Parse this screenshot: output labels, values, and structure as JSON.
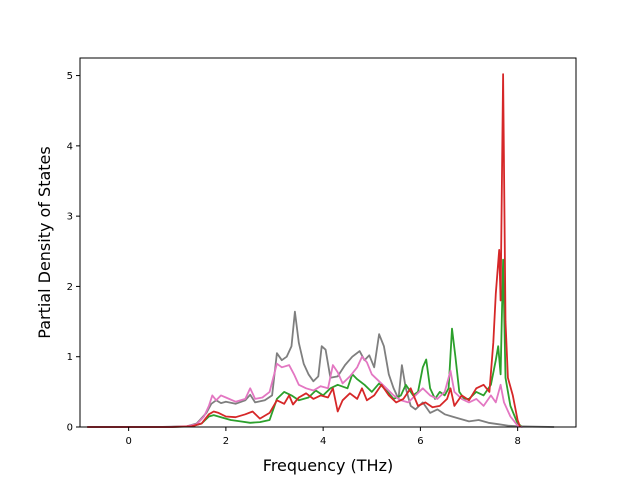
{
  "chart_data": {
    "type": "line",
    "title": "",
    "xlabel": "Frequency (THz)",
    "ylabel": "Partial Density of States",
    "xlim": [
      -1.0,
      9.2
    ],
    "ylim": [
      0,
      5.25
    ],
    "xticks": [
      0,
      2,
      4,
      6,
      8
    ],
    "yticks": [
      0,
      1,
      2,
      3,
      4,
      5
    ],
    "grid": false,
    "legend": "none",
    "series": [
      {
        "color": "#7f7f7f",
        "points": [
          [
            -0.85,
            0
          ],
          [
            0.6,
            0
          ],
          [
            1.2,
            0.01
          ],
          [
            1.4,
            0.05
          ],
          [
            1.6,
            0.2
          ],
          [
            1.7,
            0.33
          ],
          [
            1.8,
            0.38
          ],
          [
            1.9,
            0.34
          ],
          [
            2.0,
            0.36
          ],
          [
            2.2,
            0.33
          ],
          [
            2.4,
            0.38
          ],
          [
            2.5,
            0.46
          ],
          [
            2.6,
            0.35
          ],
          [
            2.8,
            0.38
          ],
          [
            2.95,
            0.45
          ],
          [
            3.05,
            1.05
          ],
          [
            3.15,
            0.95
          ],
          [
            3.25,
            1.0
          ],
          [
            3.35,
            1.15
          ],
          [
            3.42,
            1.64
          ],
          [
            3.5,
            1.2
          ],
          [
            3.6,
            0.9
          ],
          [
            3.7,
            0.75
          ],
          [
            3.8,
            0.65
          ],
          [
            3.9,
            0.72
          ],
          [
            3.97,
            1.15
          ],
          [
            4.05,
            1.1
          ],
          [
            4.15,
            0.7
          ],
          [
            4.3,
            0.72
          ],
          [
            4.45,
            0.88
          ],
          [
            4.6,
            1.0
          ],
          [
            4.75,
            1.08
          ],
          [
            4.85,
            0.95
          ],
          [
            4.95,
            1.02
          ],
          [
            5.05,
            0.85
          ],
          [
            5.15,
            1.32
          ],
          [
            5.25,
            1.15
          ],
          [
            5.35,
            0.75
          ],
          [
            5.45,
            0.55
          ],
          [
            5.55,
            0.4
          ],
          [
            5.62,
            0.88
          ],
          [
            5.7,
            0.55
          ],
          [
            5.8,
            0.3
          ],
          [
            5.9,
            0.25
          ],
          [
            6.05,
            0.35
          ],
          [
            6.2,
            0.2
          ],
          [
            6.35,
            0.25
          ],
          [
            6.5,
            0.18
          ],
          [
            6.65,
            0.15
          ],
          [
            6.8,
            0.12
          ],
          [
            7.0,
            0.08
          ],
          [
            7.2,
            0.1
          ],
          [
            7.4,
            0.06
          ],
          [
            7.6,
            0.04
          ],
          [
            7.8,
            0.02
          ],
          [
            8.0,
            0.01
          ],
          [
            8.75,
            0
          ]
        ]
      },
      {
        "color": "#2ca02c",
        "points": [
          [
            -0.85,
            0
          ],
          [
            0.8,
            0
          ],
          [
            1.3,
            0.01
          ],
          [
            1.5,
            0.05
          ],
          [
            1.65,
            0.15
          ],
          [
            1.75,
            0.17
          ],
          [
            1.9,
            0.14
          ],
          [
            2.1,
            0.1
          ],
          [
            2.3,
            0.08
          ],
          [
            2.5,
            0.06
          ],
          [
            2.7,
            0.07
          ],
          [
            2.9,
            0.1
          ],
          [
            3.05,
            0.4
          ],
          [
            3.2,
            0.5
          ],
          [
            3.35,
            0.45
          ],
          [
            3.5,
            0.38
          ],
          [
            3.7,
            0.42
          ],
          [
            3.85,
            0.52
          ],
          [
            4.0,
            0.45
          ],
          [
            4.15,
            0.55
          ],
          [
            4.3,
            0.6
          ],
          [
            4.5,
            0.55
          ],
          [
            4.6,
            0.75
          ],
          [
            4.7,
            0.68
          ],
          [
            4.85,
            0.6
          ],
          [
            5.0,
            0.5
          ],
          [
            5.15,
            0.62
          ],
          [
            5.3,
            0.52
          ],
          [
            5.45,
            0.4
          ],
          [
            5.6,
            0.45
          ],
          [
            5.7,
            0.6
          ],
          [
            5.85,
            0.45
          ],
          [
            5.95,
            0.5
          ],
          [
            6.05,
            0.85
          ],
          [
            6.12,
            0.96
          ],
          [
            6.2,
            0.55
          ],
          [
            6.3,
            0.4
          ],
          [
            6.4,
            0.5
          ],
          [
            6.5,
            0.45
          ],
          [
            6.58,
            0.55
          ],
          [
            6.65,
            1.4
          ],
          [
            6.72,
            1.0
          ],
          [
            6.8,
            0.5
          ],
          [
            6.9,
            0.4
          ],
          [
            7.0,
            0.4
          ],
          [
            7.15,
            0.5
          ],
          [
            7.3,
            0.45
          ],
          [
            7.45,
            0.6
          ],
          [
            7.55,
            0.95
          ],
          [
            7.6,
            1.15
          ],
          [
            7.65,
            0.75
          ],
          [
            7.7,
            2.38
          ],
          [
            7.75,
            0.7
          ],
          [
            7.85,
            0.3
          ],
          [
            8.0,
            0.05
          ],
          [
            8.1,
            0
          ]
        ]
      },
      {
        "color": "#e377c2",
        "points": [
          [
            -0.85,
            0
          ],
          [
            0.8,
            0
          ],
          [
            1.2,
            0.01
          ],
          [
            1.4,
            0.04
          ],
          [
            1.55,
            0.15
          ],
          [
            1.65,
            0.3
          ],
          [
            1.72,
            0.45
          ],
          [
            1.8,
            0.38
          ],
          [
            1.9,
            0.45
          ],
          [
            2.0,
            0.42
          ],
          [
            2.2,
            0.36
          ],
          [
            2.4,
            0.4
          ],
          [
            2.5,
            0.55
          ],
          [
            2.6,
            0.4
          ],
          [
            2.75,
            0.42
          ],
          [
            2.9,
            0.5
          ],
          [
            3.05,
            0.9
          ],
          [
            3.15,
            0.85
          ],
          [
            3.3,
            0.88
          ],
          [
            3.4,
            0.75
          ],
          [
            3.5,
            0.6
          ],
          [
            3.65,
            0.55
          ],
          [
            3.8,
            0.52
          ],
          [
            3.95,
            0.58
          ],
          [
            4.1,
            0.55
          ],
          [
            4.2,
            0.88
          ],
          [
            4.3,
            0.78
          ],
          [
            4.4,
            0.62
          ],
          [
            4.55,
            0.72
          ],
          [
            4.7,
            0.85
          ],
          [
            4.8,
            1.0
          ],
          [
            4.9,
            0.92
          ],
          [
            5.0,
            0.75
          ],
          [
            5.15,
            0.65
          ],
          [
            5.3,
            0.55
          ],
          [
            5.45,
            0.45
          ],
          [
            5.6,
            0.38
          ],
          [
            5.75,
            0.35
          ],
          [
            5.9,
            0.45
          ],
          [
            6.05,
            0.55
          ],
          [
            6.2,
            0.45
          ],
          [
            6.35,
            0.4
          ],
          [
            6.5,
            0.5
          ],
          [
            6.62,
            0.8
          ],
          [
            6.7,
            0.5
          ],
          [
            6.85,
            0.4
          ],
          [
            7.0,
            0.35
          ],
          [
            7.15,
            0.4
          ],
          [
            7.3,
            0.3
          ],
          [
            7.45,
            0.45
          ],
          [
            7.55,
            0.35
          ],
          [
            7.65,
            0.6
          ],
          [
            7.72,
            0.35
          ],
          [
            7.85,
            0.15
          ],
          [
            8.0,
            0.02
          ],
          [
            8.1,
            0
          ]
        ]
      },
      {
        "color": "#d62728",
        "points": [
          [
            -0.85,
            0
          ],
          [
            0.9,
            0
          ],
          [
            1.3,
            0.01
          ],
          [
            1.5,
            0.05
          ],
          [
            1.65,
            0.18
          ],
          [
            1.75,
            0.22
          ],
          [
            1.85,
            0.2
          ],
          [
            2.0,
            0.15
          ],
          [
            2.2,
            0.14
          ],
          [
            2.4,
            0.18
          ],
          [
            2.55,
            0.22
          ],
          [
            2.7,
            0.12
          ],
          [
            2.9,
            0.2
          ],
          [
            3.05,
            0.38
          ],
          [
            3.2,
            0.33
          ],
          [
            3.3,
            0.45
          ],
          [
            3.38,
            0.32
          ],
          [
            3.5,
            0.42
          ],
          [
            3.65,
            0.48
          ],
          [
            3.8,
            0.4
          ],
          [
            3.95,
            0.45
          ],
          [
            4.1,
            0.42
          ],
          [
            4.2,
            0.55
          ],
          [
            4.3,
            0.22
          ],
          [
            4.4,
            0.38
          ],
          [
            4.55,
            0.48
          ],
          [
            4.7,
            0.4
          ],
          [
            4.8,
            0.55
          ],
          [
            4.9,
            0.38
          ],
          [
            5.05,
            0.45
          ],
          [
            5.2,
            0.6
          ],
          [
            5.35,
            0.45
          ],
          [
            5.5,
            0.35
          ],
          [
            5.65,
            0.4
          ],
          [
            5.8,
            0.55
          ],
          [
            5.95,
            0.3
          ],
          [
            6.1,
            0.35
          ],
          [
            6.25,
            0.28
          ],
          [
            6.4,
            0.3
          ],
          [
            6.55,
            0.4
          ],
          [
            6.62,
            0.55
          ],
          [
            6.7,
            0.3
          ],
          [
            6.85,
            0.45
          ],
          [
            7.0,
            0.38
          ],
          [
            7.15,
            0.55
          ],
          [
            7.3,
            0.6
          ],
          [
            7.42,
            0.5
          ],
          [
            7.5,
            1.2
          ],
          [
            7.55,
            1.9
          ],
          [
            7.62,
            2.52
          ],
          [
            7.65,
            1.8
          ],
          [
            7.7,
            5.02
          ],
          [
            7.75,
            1.5
          ],
          [
            7.8,
            0.7
          ],
          [
            7.9,
            0.45
          ],
          [
            8.0,
            0.1
          ],
          [
            8.05,
            0
          ]
        ]
      }
    ]
  }
}
